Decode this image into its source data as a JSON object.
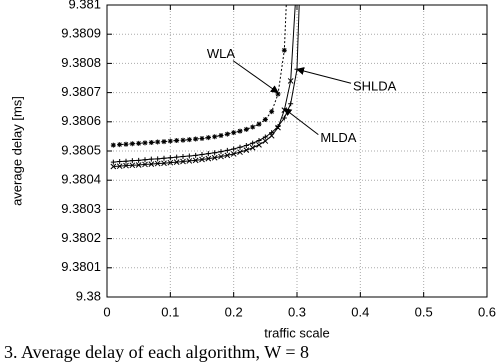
{
  "chart_data": {
    "type": "line",
    "xlabel": "traffic scale",
    "ylabel": "average delay [ms]",
    "caption": "3. Average delay of each algorithm, W = 8",
    "xlim": [
      0,
      0.6
    ],
    "xticks": [
      0,
      0.1,
      0.2,
      0.3,
      0.4,
      0.5,
      0.6
    ],
    "ylim": [
      9.38,
      9.381
    ],
    "yticks": [
      9.38,
      9.3801,
      9.3802,
      9.3803,
      9.3804,
      9.3805,
      9.3806,
      9.3807,
      9.3808,
      9.3809,
      9.381
    ],
    "grid": true,
    "series": [
      {
        "name": "WLA",
        "color": "#000000",
        "dash": "2,2",
        "marker": "star",
        "x": [
          0.01,
          0.02,
          0.03,
          0.04,
          0.05,
          0.06,
          0.07,
          0.08,
          0.09,
          0.1,
          0.11,
          0.12,
          0.13,
          0.14,
          0.15,
          0.16,
          0.17,
          0.18,
          0.19,
          0.2,
          0.21,
          0.22,
          0.23,
          0.24,
          0.25,
          0.26,
          0.27,
          0.28,
          0.285
        ],
        "values": [
          9.38052,
          9.380522,
          9.380523,
          9.380525,
          9.380526,
          9.380528,
          9.380529,
          9.380531,
          9.380532,
          9.380534,
          9.380536,
          9.380537,
          9.380539,
          9.380541,
          9.380543,
          9.380546,
          9.380549,
          9.380553,
          9.380558,
          9.380563,
          9.380568,
          9.380574,
          9.380582,
          9.380592,
          9.380608,
          9.380635,
          9.380695,
          9.380845,
          9.3811
        ]
      },
      {
        "name": "SHLDA",
        "color": "#000000",
        "dash": "none",
        "marker": "plus",
        "x": [
          0.01,
          0.02,
          0.03,
          0.04,
          0.05,
          0.06,
          0.07,
          0.08,
          0.09,
          0.1,
          0.11,
          0.12,
          0.13,
          0.14,
          0.15,
          0.16,
          0.17,
          0.18,
          0.19,
          0.2,
          0.21,
          0.22,
          0.23,
          0.24,
          0.25,
          0.26,
          0.27,
          0.28,
          0.29,
          0.3,
          0.305
        ],
        "values": [
          9.380462,
          9.380464,
          9.380465,
          9.380467,
          9.380468,
          9.38047,
          9.380472,
          9.380473,
          9.380475,
          9.380477,
          9.380479,
          9.380481,
          9.380483,
          9.380485,
          9.380488,
          9.380491,
          9.380494,
          9.380498,
          9.380502,
          9.380507,
          9.380513,
          9.380519,
          9.380527,
          9.380536,
          9.380548,
          9.380563,
          9.380584,
          9.380613,
          9.380662,
          9.38078,
          9.3811
        ]
      },
      {
        "name": "MLDA",
        "color": "#000000",
        "dash": "none",
        "marker": "cross",
        "x": [
          0.01,
          0.02,
          0.03,
          0.04,
          0.05,
          0.06,
          0.07,
          0.08,
          0.09,
          0.1,
          0.11,
          0.12,
          0.13,
          0.14,
          0.15,
          0.16,
          0.17,
          0.18,
          0.19,
          0.2,
          0.21,
          0.22,
          0.23,
          0.24,
          0.25,
          0.26,
          0.27,
          0.28,
          0.29,
          0.3
        ],
        "values": [
          9.380447,
          9.380448,
          9.38045,
          9.380451,
          9.380452,
          9.380454,
          9.380455,
          9.380457,
          9.380458,
          9.38046,
          9.380462,
          9.380464,
          9.380466,
          9.380468,
          9.380471,
          9.380474,
          9.380477,
          9.380481,
          9.380485,
          9.38049,
          9.380496,
          9.380503,
          9.380511,
          9.380521,
          9.380534,
          9.380552,
          9.38058,
          9.38064,
          9.38074,
          9.3811
        ]
      }
    ],
    "annotations": [
      {
        "text": "WLA",
        "x": 0.27,
        "y": 9.3807
      },
      {
        "text": "SHLDA",
        "x": 0.3,
        "y": 9.38078
      },
      {
        "text": "MLDA",
        "x": 0.28,
        "y": 9.380645
      }
    ]
  }
}
